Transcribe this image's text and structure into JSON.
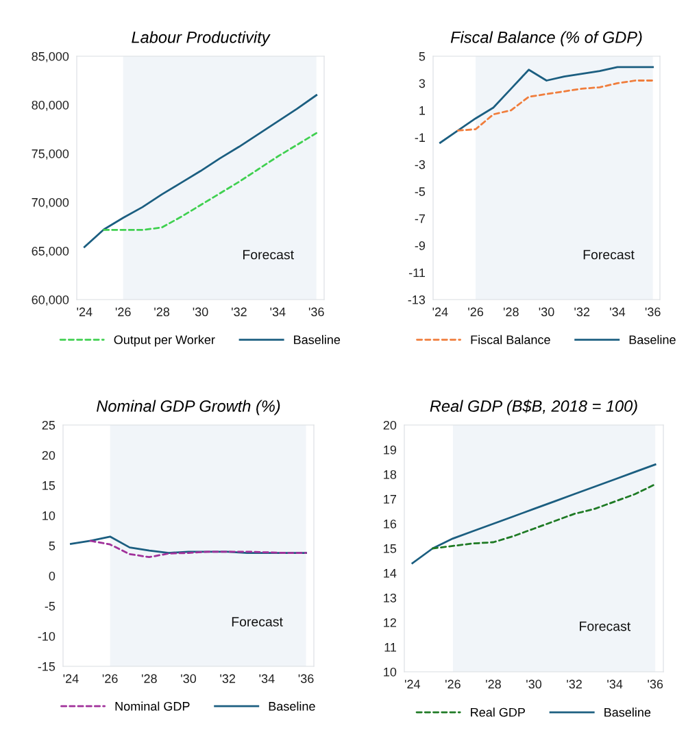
{
  "chart_data": [
    {
      "type": "line",
      "title": "Labour Productivity",
      "x": [
        2024,
        2025,
        2026,
        2027,
        2028,
        2029,
        2030,
        2031,
        2032,
        2033,
        2034,
        2035,
        2036
      ],
      "xlim": [
        2023.6,
        2036.4
      ],
      "xticks": [
        {
          "value": 2024,
          "label": "'24"
        },
        {
          "value": 2026,
          "label": "'26"
        },
        {
          "value": 2028,
          "label": "'28"
        },
        {
          "value": 2030,
          "label": "'30"
        },
        {
          "value": 2032,
          "label": "'32"
        },
        {
          "value": 2034,
          "label": "'34"
        },
        {
          "value": 2036,
          "label": "'36"
        }
      ],
      "ylim": [
        60000,
        85000
      ],
      "yticks": [
        {
          "value": 60000,
          "label": "60,000"
        },
        {
          "value": 65000,
          "label": "65,000"
        },
        {
          "value": 70000,
          "label": "70,000"
        },
        {
          "value": 75000,
          "label": "75,000"
        },
        {
          "value": 80000,
          "label": "80,000"
        },
        {
          "value": 85000,
          "label": "85,000"
        }
      ],
      "grid": false,
      "legend": "bottom",
      "bands": [
        {
          "axis": "x",
          "from": 2026,
          "to": 2036,
          "label": "Forecast",
          "color": "#f1f5f9"
        }
      ],
      "series": [
        {
          "name": "Output per Worker",
          "color": "#40d050",
          "line_style": "dashed",
          "values": [
            null,
            67150,
            67150,
            67150,
            67400,
            68500,
            69700,
            70900,
            72100,
            73400,
            74700,
            75900,
            77100
          ]
        },
        {
          "name": "Baseline",
          "color": "#1b5e80",
          "line_style": "solid",
          "values": [
            65400,
            67200,
            68400,
            69500,
            70800,
            72000,
            73200,
            74500,
            75700,
            77000,
            78300,
            79600,
            81000
          ]
        }
      ]
    },
    {
      "type": "line",
      "title": "Fiscal Balance (% of GDP)",
      "x": [
        2024,
        2025,
        2026,
        2027,
        2028,
        2029,
        2030,
        2031,
        2032,
        2033,
        2034,
        2035,
        2036
      ],
      "xlim": [
        2023.6,
        2036.4
      ],
      "xticks": [
        {
          "value": 2024,
          "label": "'24"
        },
        {
          "value": 2026,
          "label": "'26"
        },
        {
          "value": 2028,
          "label": "'28"
        },
        {
          "value": 2030,
          "label": "'30"
        },
        {
          "value": 2032,
          "label": "'32"
        },
        {
          "value": 2034,
          "label": "'34"
        },
        {
          "value": 2036,
          "label": "'36"
        }
      ],
      "ylim": [
        -13,
        5
      ],
      "yticks": [
        -13,
        -11,
        -9,
        -7,
        -5,
        -3,
        -1,
        1,
        3,
        5
      ],
      "grid": false,
      "legend": "bottom",
      "bands": [
        {
          "axis": "x",
          "from": 2026,
          "to": 2036,
          "label": "Forecast",
          "color": "#f1f5f9"
        }
      ],
      "series": [
        {
          "name": "Fiscal Balance",
          "color": "#f07d3c",
          "line_style": "dashed",
          "values": [
            null,
            -0.5,
            -0.4,
            0.7,
            1.0,
            2.0,
            2.2,
            2.4,
            2.6,
            2.7,
            3.0,
            3.2,
            3.2
          ]
        },
        {
          "name": "Baseline",
          "color": "#1b5e80",
          "line_style": "solid",
          "values": [
            -1.4,
            -0.5,
            0.4,
            1.2,
            2.6,
            4.0,
            3.2,
            3.5,
            3.7,
            3.9,
            4.2,
            4.2,
            4.2
          ]
        }
      ]
    },
    {
      "type": "line",
      "title": "Nominal GDP Growth (%)",
      "x": [
        2024,
        2025,
        2026,
        2027,
        2028,
        2029,
        2030,
        2031,
        2032,
        2033,
        2034,
        2035,
        2036
      ],
      "xlim": [
        2023.6,
        2036.4
      ],
      "xticks": [
        {
          "value": 2024,
          "label": "'24"
        },
        {
          "value": 2026,
          "label": "'26"
        },
        {
          "value": 2028,
          "label": "'28"
        },
        {
          "value": 2030,
          "label": "'30"
        },
        {
          "value": 2032,
          "label": "'32"
        },
        {
          "value": 2034,
          "label": "'34"
        },
        {
          "value": 2036,
          "label": "'36"
        }
      ],
      "ylim": [
        -15,
        25
      ],
      "yticks": [
        -15,
        -10,
        -5,
        0,
        5,
        10,
        15,
        20,
        25
      ],
      "grid": false,
      "legend": "bottom",
      "bands": [
        {
          "axis": "x",
          "from": 2026,
          "to": 2036,
          "label": "Forecast",
          "color": "#f1f5f9"
        }
      ],
      "series": [
        {
          "name": "Nominal GDP",
          "color": "#a0309a",
          "line_style": "dashed",
          "values": [
            null,
            5.8,
            5.2,
            3.6,
            3.1,
            3.7,
            3.8,
            4.0,
            4.0,
            4.0,
            3.9,
            3.8,
            3.8
          ]
        },
        {
          "name": "Baseline",
          "color": "#1b5e80",
          "line_style": "solid",
          "values": [
            5.3,
            5.8,
            6.5,
            4.7,
            4.2,
            3.8,
            4.0,
            4.0,
            4.0,
            3.8,
            3.8,
            3.8,
            3.8
          ]
        }
      ]
    },
    {
      "type": "line",
      "title": "Real GDP (B$B, 2018 = 100)",
      "x": [
        2024,
        2025,
        2026,
        2027,
        2028,
        2029,
        2030,
        2031,
        2032,
        2033,
        2034,
        2035,
        2036
      ],
      "xlim": [
        2023.6,
        2036.4
      ],
      "xticks": [
        {
          "value": 2024,
          "label": "'24"
        },
        {
          "value": 2026,
          "label": "'26"
        },
        {
          "value": 2028,
          "label": "'28"
        },
        {
          "value": 2030,
          "label": "'30"
        },
        {
          "value": 2032,
          "label": "'32"
        },
        {
          "value": 2034,
          "label": "'34"
        },
        {
          "value": 2036,
          "label": "'36"
        }
      ],
      "ylim": [
        10,
        20
      ],
      "yticks": [
        10,
        11,
        12,
        13,
        14,
        15,
        16,
        17,
        18,
        19,
        20
      ],
      "grid": false,
      "legend": "bottom",
      "bands": [
        {
          "axis": "x",
          "from": 2026,
          "to": 2036,
          "label": "Forecast",
          "color": "#f1f5f9"
        }
      ],
      "series": [
        {
          "name": "Real GDP",
          "color": "#1e7a24",
          "line_style": "dashed",
          "values": [
            null,
            15.0,
            15.1,
            15.2,
            15.25,
            15.5,
            15.8,
            16.1,
            16.4,
            16.6,
            16.9,
            17.2,
            17.6
          ]
        },
        {
          "name": "Baseline",
          "color": "#1b5e80",
          "line_style": "solid",
          "values": [
            14.4,
            15.0,
            15.4,
            15.7,
            16.0,
            16.3,
            16.6,
            16.9,
            17.2,
            17.5,
            17.8,
            18.1,
            18.4
          ]
        }
      ]
    }
  ]
}
